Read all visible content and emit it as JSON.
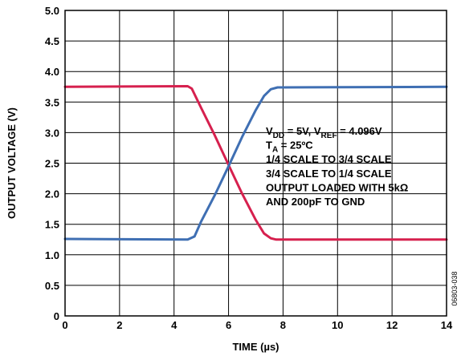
{
  "chart_data": {
    "type": "line",
    "xlabel": "TIME (µs)",
    "ylabel": "OUTPUT VOLTAGE (V)",
    "xlim": [
      0,
      14
    ],
    "ylim": [
      0,
      5.0
    ],
    "x_ticks": [
      0,
      2,
      4,
      6,
      8,
      10,
      12,
      14
    ],
    "y_tick_labels": [
      "0",
      "0.5",
      "1.0",
      "1.5",
      "2.0",
      "2.5",
      "3.0",
      "3.5",
      "4.0",
      "4.5",
      "5.0"
    ],
    "grid": true,
    "series": [
      {
        "color": "#d6204e",
        "x": [
          0,
          4.5,
          4.65,
          5.0,
          5.5,
          6.0,
          6.5,
          7.0,
          7.3,
          7.55,
          7.75,
          8.0,
          14.0
        ],
        "y": [
          3.75,
          3.76,
          3.72,
          3.4,
          2.95,
          2.47,
          2.0,
          1.57,
          1.35,
          1.27,
          1.25,
          1.25,
          1.25
        ]
      },
      {
        "color": "#3f6fb3",
        "x": [
          0,
          4.5,
          4.75,
          5.0,
          5.5,
          6.0,
          6.5,
          7.0,
          7.3,
          7.55,
          7.8,
          8.0,
          14.0
        ],
        "y": [
          1.26,
          1.25,
          1.3,
          1.55,
          1.98,
          2.45,
          2.93,
          3.37,
          3.6,
          3.71,
          3.74,
          3.74,
          3.75
        ]
      }
    ],
    "annotation": [
      [
        {
          "t": "V"
        },
        {
          "t": "DD",
          "sub": true
        },
        {
          "t": " = 5V, V"
        },
        {
          "t": "REF",
          "sub": true
        },
        {
          "t": " = 4.096V"
        }
      ],
      [
        {
          "t": "T"
        },
        {
          "t": "A",
          "sub": true
        },
        {
          "t": " = 25ºC"
        }
      ],
      [
        {
          "t": "1/4 SCALE TO 3/4 SCALE"
        }
      ],
      [
        {
          "t": "3/4 SCALE TO 1/4 SCALE"
        }
      ],
      [
        {
          "t": "OUTPUT LOADED WITH 5kΩ"
        }
      ],
      [
        {
          "t": "AND 200pF TO GND"
        }
      ]
    ],
    "figure_id": "06803-038"
  }
}
